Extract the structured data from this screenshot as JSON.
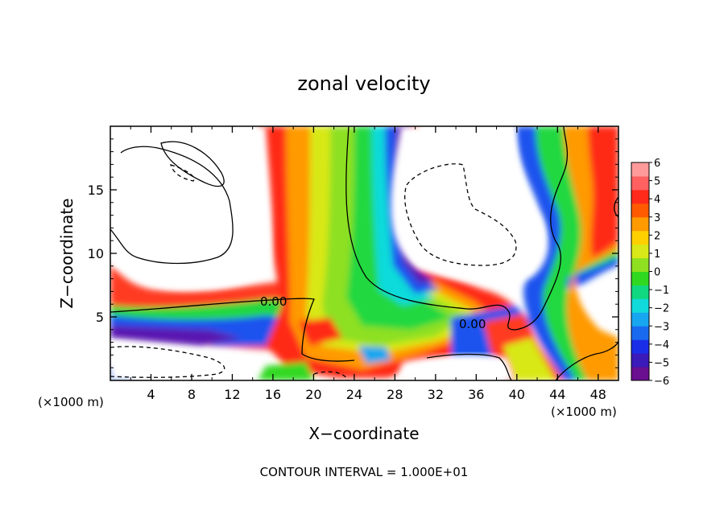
{
  "chart_data": {
    "type": "heatmap",
    "title": "zonal velocity",
    "xlabel": "X−coordinate",
    "ylabel": "Z−coordinate",
    "x_unit_label": "(×1000 m)",
    "y_unit_label": "(×1000 m)",
    "xlim": [
      0,
      50
    ],
    "ylim": [
      0,
      20
    ],
    "x_ticks": [
      4,
      8,
      12,
      16,
      20,
      24,
      28,
      32,
      36,
      40,
      44,
      48
    ],
    "y_ticks": [
      5,
      10,
      15
    ],
    "footer": "CONTOUR INTERVAL = 1.000E+01",
    "colorbar": {
      "min": -6,
      "max": 6,
      "tick_labels": [
        "6",
        "5",
        "4",
        "3",
        "2",
        "1",
        "0",
        "−1",
        "−2",
        "−3",
        "−4",
        "−5",
        "−6"
      ],
      "colors": [
        "#6a0f8f",
        "#3a1ab8",
        "#1a2ee8",
        "#1a6af0",
        "#18a6f0",
        "#10dada",
        "#10d880",
        "#30d820",
        "#8ee020",
        "#d8e818",
        "#ffd000",
        "#ff9a00",
        "#ff5a00",
        "#ff2a1a",
        "#ff6060",
        "#ff9a9a"
      ]
    },
    "contour_labels": [
      "0.00",
      "0.00"
    ]
  }
}
